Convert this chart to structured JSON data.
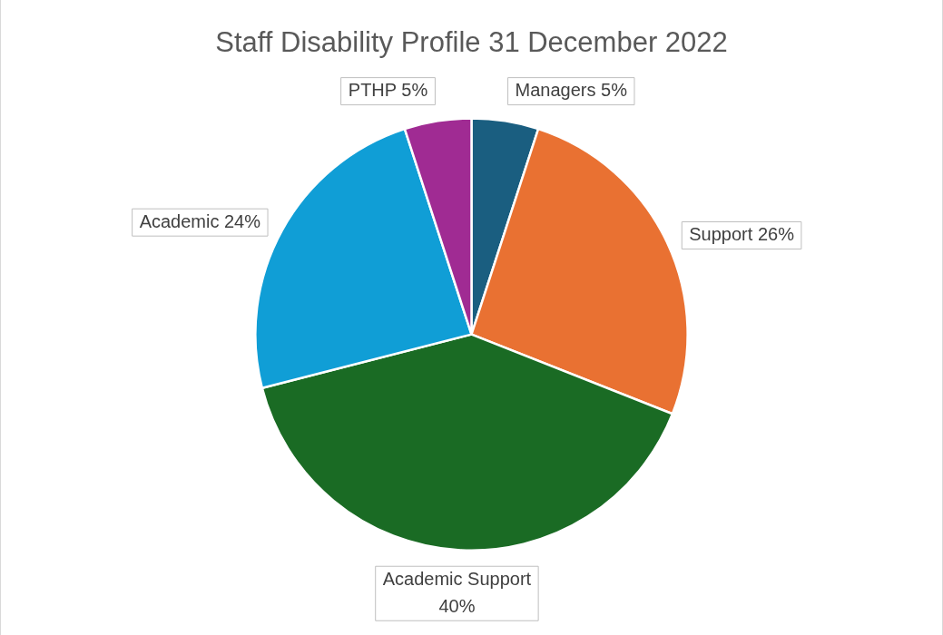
{
  "chart_data": {
    "type": "pie",
    "title": "Staff Disability Profile 31 December 2022",
    "categories": [
      "Managers",
      "Support",
      "Academic Support",
      "Academic",
      "PTHP"
    ],
    "values": [
      5,
      26,
      40,
      24,
      5
    ],
    "value_labels": [
      "5%",
      "26%",
      "40%",
      "24%",
      "5%"
    ],
    "colors": [
      "#1a5e80",
      "#e97132",
      "#1a6b24",
      "#109ed6",
      "#a02b93"
    ],
    "legend": false
  }
}
